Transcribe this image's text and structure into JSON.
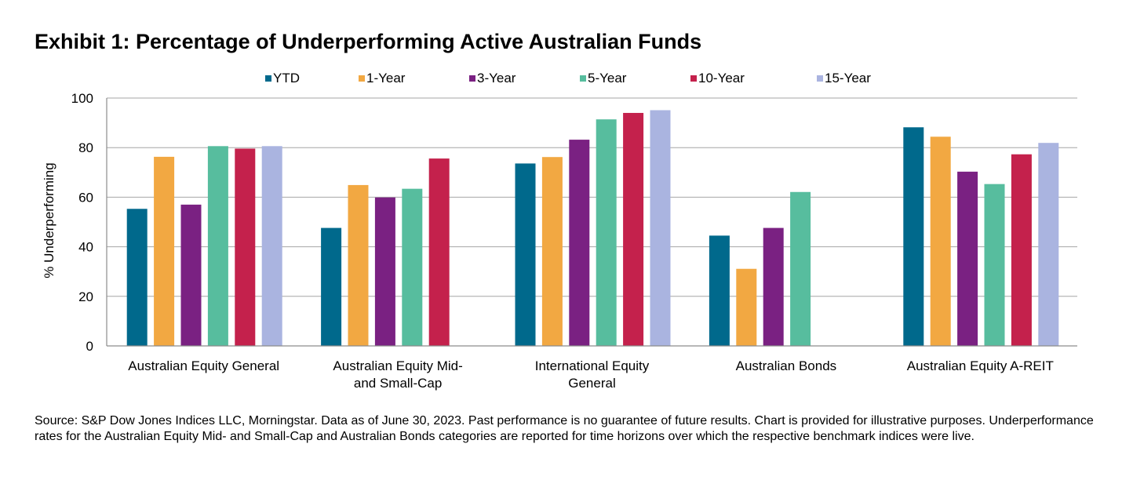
{
  "title": "Exhibit 1: Percentage of Underperforming Active Australian Funds",
  "source_note": "Source: S&P Dow Jones Indices LLC, Morningstar.  Data as of June 30, 2023.  Past performance is no guarantee of future results.  Chart is provided for illustrative purposes.  Underperformance rates for the Australian Equity Mid- and Small-Cap and Australian Bonds categories are reported for time horizons over which the respective benchmark indices were live.",
  "chart_data": {
    "type": "bar",
    "title": "Exhibit 1: Percentage of Underperforming Active Australian Funds",
    "xlabel": "",
    "ylabel": "% Underperforming",
    "ylim": [
      0,
      100
    ],
    "yticks": [
      0,
      20,
      40,
      60,
      80,
      100
    ],
    "grid": true,
    "legend_position": "top",
    "categories": [
      [
        "Australian Equity General"
      ],
      [
        "Australian Equity Mid-",
        "and Small-Cap"
      ],
      [
        "International Equity",
        "General"
      ],
      [
        "Australian Bonds"
      ],
      [
        "Australian Equity A-REIT"
      ]
    ],
    "series": [
      {
        "name": "YTD",
        "color": "#00698c",
        "values": [
          55.3,
          47.6,
          73.6,
          44.5,
          88.2
        ]
      },
      {
        "name": "1-Year",
        "color": "#f2a842",
        "values": [
          76.3,
          64.9,
          76.2,
          31.1,
          84.4
        ]
      },
      {
        "name": "3-Year",
        "color": "#7a2182",
        "values": [
          57.0,
          59.9,
          83.2,
          47.6,
          70.3
        ]
      },
      {
        "name": "5-Year",
        "color": "#57bd9e",
        "values": [
          80.6,
          63.4,
          91.4,
          62.1,
          65.3
        ]
      },
      {
        "name": "10-Year",
        "color": "#c4214c",
        "values": [
          79.6,
          75.6,
          94.0,
          null,
          77.3
        ]
      },
      {
        "name": "15-Year",
        "color": "#aab4e0",
        "values": [
          80.6,
          null,
          95.1,
          null,
          81.9
        ]
      }
    ]
  }
}
